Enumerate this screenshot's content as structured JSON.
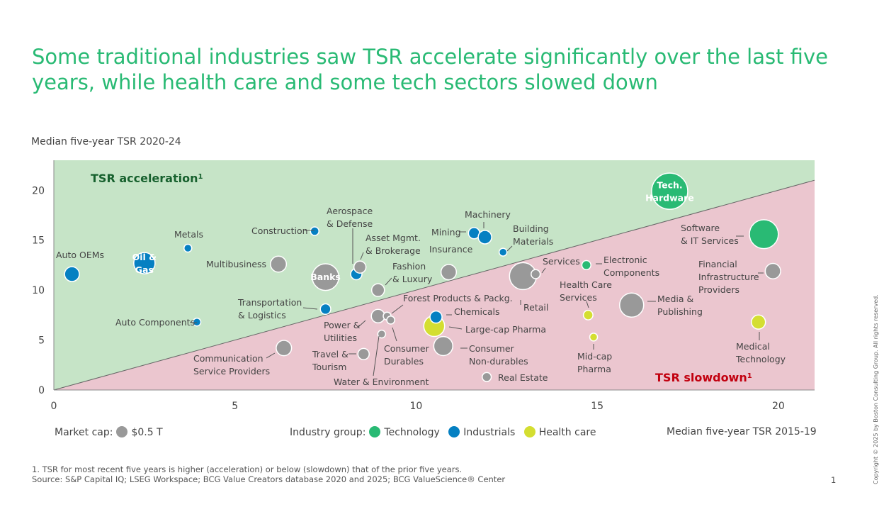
{
  "title": {
    "line1": "Some traditional industries saw TSR accelerate significantly over the last five",
    "line2": "years, while health care and some tech sectors slowed down"
  },
  "colors": {
    "title": "#29ba74",
    "accel_zone": "#c6e4c7",
    "slow_zone": "#ebc6cf",
    "accel_text": "#17612e",
    "slow_text": "#c2000f",
    "Technology": "#29ba74",
    "Industrials": "#0580c2",
    "Health care": "#d4de31",
    "Other": "#999999"
  },
  "legend": {
    "market_cap_label": "Market cap:",
    "market_cap_value": "$0.5 T",
    "group_label": "Industry group:",
    "groups": [
      "Technology",
      "Industrials",
      "Health care"
    ]
  },
  "chart_data": {
    "type": "scatter",
    "title": "",
    "xlabel": "Median five-year TSR 2015-19",
    "ylabel": "Median five-year TSR 2020-24",
    "xlim": [
      0,
      21
    ],
    "ylim": [
      0,
      23
    ],
    "xticks": [
      0,
      5,
      10,
      15,
      20
    ],
    "yticks": [
      0,
      5,
      10,
      15,
      20
    ],
    "grid": false,
    "zones": {
      "acceleration": "TSR acceleration",
      "acceleration_note": "1",
      "slowdown": "TSR slowdown",
      "slowdown_note": "1"
    },
    "reference_line": {
      "from": [
        0,
        0
      ],
      "to": [
        21,
        21
      ]
    },
    "points": [
      {
        "name": "Auto OEMs",
        "x": 0.5,
        "y": 11.6,
        "group": "Industrials",
        "size": 1.2
      },
      {
        "name": "Oil & Gas",
        "x": 2.5,
        "y": 12.7,
        "group": "Industrials",
        "size": 2.5
      },
      {
        "name": "Metals",
        "x": 3.7,
        "y": 14.2,
        "group": "Industrials",
        "size": 0.2
      },
      {
        "name": "Auto Components",
        "x": 3.95,
        "y": 6.8,
        "group": "Industrials",
        "size": 0.2
      },
      {
        "name": "Multibusiness",
        "x": 6.2,
        "y": 12.6,
        "group": "Other",
        "size": 1.4
      },
      {
        "name": "Communication Service Providers",
        "x": 6.35,
        "y": 4.2,
        "group": "Other",
        "size": 1.3
      },
      {
        "name": "Construction",
        "x": 7.2,
        "y": 15.9,
        "group": "Industrials",
        "size": 0.4
      },
      {
        "name": "Banks",
        "x": 7.5,
        "y": 11.3,
        "group": "Other",
        "size": 3.9
      },
      {
        "name": "Transportation & Logistics",
        "x": 7.5,
        "y": 8.1,
        "group": "Industrials",
        "size": 0.6
      },
      {
        "name": "Aerospace & Defense",
        "x": 8.35,
        "y": 11.6,
        "group": "Industrials",
        "size": 0.7
      },
      {
        "name": "Asset Mgmt. & Brokerage",
        "x": 8.45,
        "y": 12.3,
        "group": "Other",
        "size": 0.8
      },
      {
        "name": "Travel & Tourism",
        "x": 8.55,
        "y": 3.6,
        "group": "Other",
        "size": 0.7
      },
      {
        "name": "Fashion & Luxury",
        "x": 8.95,
        "y": 10.0,
        "group": "Other",
        "size": 0.9
      },
      {
        "name": "Power & Utilities",
        "x": 8.95,
        "y": 7.4,
        "group": "Other",
        "size": 1.0
      },
      {
        "name": "Water & Environment",
        "x": 9.05,
        "y": 5.6,
        "group": "Other",
        "size": 0.1
      },
      {
        "name": "Forest Products & Packg.",
        "x": 9.2,
        "y": 7.4,
        "group": "Other",
        "size": 0.1
      },
      {
        "name": "Consumer Durables",
        "x": 9.3,
        "y": 7.0,
        "group": "Other",
        "size": 0.35
      },
      {
        "name": "Large-cap Pharma",
        "x": 10.5,
        "y": 6.4,
        "group": "Health care",
        "size": 2.4
      },
      {
        "name": "Chemicals",
        "x": 10.55,
        "y": 7.3,
        "group": "Industrials",
        "size": 0.8
      },
      {
        "name": "Consumer Non-durables",
        "x": 10.75,
        "y": 4.4,
        "group": "Other",
        "size": 2.0
      },
      {
        "name": "Insurance",
        "x": 10.9,
        "y": 11.8,
        "group": "Other",
        "size": 1.3
      },
      {
        "name": "Mining",
        "x": 11.6,
        "y": 15.7,
        "group": "Industrials",
        "size": 0.7
      },
      {
        "name": "Machinery",
        "x": 11.9,
        "y": 15.3,
        "group": "Industrials",
        "size": 1.0
      },
      {
        "name": "Real Estate",
        "x": 11.95,
        "y": 1.3,
        "group": "Other",
        "size": 0.45
      },
      {
        "name": "Building Materials",
        "x": 12.4,
        "y": 13.8,
        "group": "Industrials",
        "size": 0.3
      },
      {
        "name": "Retail",
        "x": 12.95,
        "y": 11.4,
        "group": "Other",
        "size": 4.0
      },
      {
        "name": "Services",
        "x": 13.3,
        "y": 11.6,
        "group": "Other",
        "size": 0.45
      },
      {
        "name": "Electronic Components",
        "x": 14.7,
        "y": 12.5,
        "group": "Technology",
        "size": 0.45
      },
      {
        "name": "Health Care Services",
        "x": 14.75,
        "y": 7.5,
        "group": "Health care",
        "size": 0.5
      },
      {
        "name": "Mid-cap Pharma",
        "x": 14.9,
        "y": 5.3,
        "group": "Health care",
        "size": 0.25
      },
      {
        "name": "Media & Publishing",
        "x": 15.95,
        "y": 8.5,
        "group": "Other",
        "size": 3.2
      },
      {
        "name": "Tech. Hardware",
        "x": 17.0,
        "y": 19.9,
        "group": "Technology",
        "size": 7.2
      },
      {
        "name": "Medical Technology",
        "x": 19.45,
        "y": 6.8,
        "group": "Health care",
        "size": 1.1
      },
      {
        "name": "Software & IT Services",
        "x": 19.6,
        "y": 15.6,
        "group": "Technology",
        "size": 4.6
      },
      {
        "name": "Financial Infrastructure Providers",
        "x": 19.85,
        "y": 11.9,
        "group": "Other",
        "size": 1.3
      }
    ]
  },
  "labels": [
    {
      "text": [
        "Auto OEMs"
      ]
    },
    {
      "text": [
        "Oil &",
        "Gas"
      ]
    },
    {
      "text": [
        "Metals"
      ]
    },
    {
      "text": [
        "Auto Components"
      ]
    },
    {
      "text": [
        "Multibusiness"
      ]
    },
    {
      "text": [
        "Communication",
        "Service Providers"
      ]
    },
    {
      "text": [
        "Construction"
      ]
    },
    {
      "text": [
        "Banks"
      ]
    },
    {
      "text": [
        "Transportation",
        "& Logistics"
      ]
    },
    {
      "text": [
        "Aerospace",
        "& Defense"
      ]
    },
    {
      "text": [
        "Asset Mgmt.",
        "& Brokerage"
      ]
    },
    {
      "text": [
        "Travel &",
        "Tourism"
      ]
    },
    {
      "text": [
        "Fashion",
        "& Luxury"
      ]
    },
    {
      "text": [
        "Power &",
        "Utilities"
      ]
    },
    {
      "text": [
        "Water & Environment"
      ]
    },
    {
      "text": [
        "Forest Products & Packg."
      ]
    },
    {
      "text": [
        "Consumer",
        "Durables"
      ]
    },
    {
      "text": [
        "Large-cap Pharma"
      ]
    },
    {
      "text": [
        "Chemicals"
      ]
    },
    {
      "text": [
        "Consumer",
        "Non-durables"
      ]
    },
    {
      "text": [
        "Insurance"
      ]
    },
    {
      "text": [
        "Mining"
      ]
    },
    {
      "text": [
        "Machinery"
      ]
    },
    {
      "text": [
        "Real Estate"
      ]
    },
    {
      "text": [
        "Building",
        "Materials"
      ]
    },
    {
      "text": [
        "Retail"
      ]
    },
    {
      "text": [
        "Services"
      ]
    },
    {
      "text": [
        "Electronic",
        "Components"
      ]
    },
    {
      "text": [
        "Health Care",
        "Services"
      ]
    },
    {
      "text": [
        "Mid-cap",
        "Pharma"
      ]
    },
    {
      "text": [
        "Media &",
        "Publishing"
      ]
    },
    {
      "text": [
        "Tech.",
        "Hardware"
      ]
    },
    {
      "text": [
        "Medical",
        "Technology"
      ]
    },
    {
      "text": [
        "Software",
        "& IT Services"
      ]
    },
    {
      "text": [
        "Financial",
        "Infrastructure",
        "Providers"
      ]
    }
  ],
  "footnote": {
    "line1": "1. TSR for most recent five years is higher (acceleration) or below (slowdown) that of the prior five years.",
    "line2": "Source: S&P Capital IQ; LSEG Workspace; BCG Value Creators database 2020 and 2025; BCG ValueScience® Center"
  },
  "page_number": "1",
  "copyright": "Copyright © 2025 by Boston Consulting Group. All rights reserved."
}
